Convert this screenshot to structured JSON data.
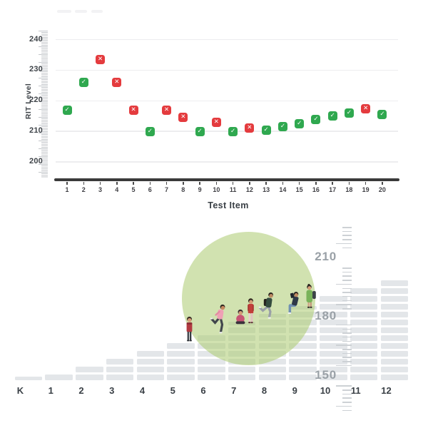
{
  "chart_data": [
    {
      "type": "scatter",
      "title": "",
      "xlabel": "Test Item",
      "ylabel": "RIT Level",
      "y_ticks": [
        240,
        230,
        220,
        210,
        200
      ],
      "ylim": [
        195,
        243
      ],
      "xlim": [
        1,
        20
      ],
      "grid": "horizontal",
      "markers": {
        "correct": {
          "color": "#2fa84f",
          "glyph": "✓"
        },
        "incorrect": {
          "color": "#e43b3e",
          "glyph": "✕"
        }
      },
      "points": [
        {
          "item": 1,
          "rit": 217,
          "result": "correct"
        },
        {
          "item": 2,
          "rit": 226,
          "result": "correct"
        },
        {
          "item": 3,
          "rit": 233.5,
          "result": "incorrect"
        },
        {
          "item": 4,
          "rit": 226,
          "result": "incorrect"
        },
        {
          "item": 5,
          "rit": 217,
          "result": "incorrect"
        },
        {
          "item": 6,
          "rit": 210,
          "result": "correct"
        },
        {
          "item": 7,
          "rit": 217,
          "result": "incorrect"
        },
        {
          "item": 8,
          "rit": 214.5,
          "result": "incorrect"
        },
        {
          "item": 9,
          "rit": 210,
          "result": "correct"
        },
        {
          "item": 10,
          "rit": 213,
          "result": "incorrect"
        },
        {
          "item": 11,
          "rit": 210,
          "result": "correct"
        },
        {
          "item": 12,
          "rit": 211,
          "result": "incorrect"
        },
        {
          "item": 13,
          "rit": 210.5,
          "result": "correct"
        },
        {
          "item": 14,
          "rit": 211.5,
          "result": "correct"
        },
        {
          "item": 15,
          "rit": 212.5,
          "result": "correct"
        },
        {
          "item": 16,
          "rit": 214,
          "result": "correct"
        },
        {
          "item": 17,
          "rit": 215,
          "result": "correct"
        },
        {
          "item": 18,
          "rit": 216,
          "result": "correct"
        },
        {
          "item": 19,
          "rit": 217.5,
          "result": "incorrect"
        },
        {
          "item": 20,
          "rit": 215.5,
          "result": "correct"
        }
      ]
    },
    {
      "type": "bar",
      "title": "",
      "categories": [
        "K",
        "1",
        "2",
        "3",
        "4",
        "5",
        "6",
        "7",
        "8",
        "9",
        "10",
        "11",
        "12"
      ],
      "segments": [
        0.5,
        1,
        2,
        3,
        4,
        5,
        6,
        7.5,
        8.5,
        9.5,
        11,
        12,
        13
      ],
      "bar_color": "#e3e6e9",
      "highlight_circle_color": "#cfe2ab",
      "ruler": {
        "labels": [
          210,
          180,
          150
        ]
      },
      "figures": [
        "standing-student-red-shirt",
        "running-student-pink-shirt",
        "sitting-student-crosslegged",
        "standing-student-red-jacket",
        "running-student-backpack",
        "sitting-student-reading",
        "standing-student-green-dress"
      ]
    }
  ]
}
